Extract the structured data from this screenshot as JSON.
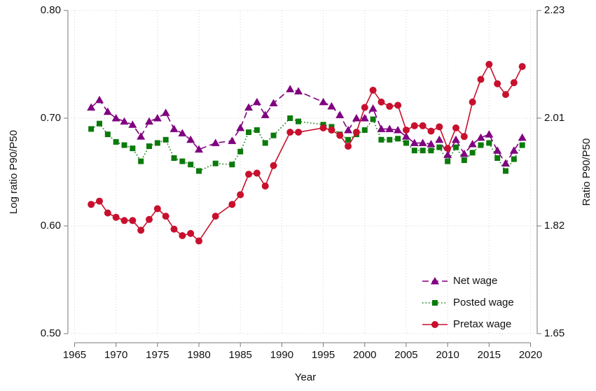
{
  "chart_data": {
    "type": "line",
    "xlabel": "Year",
    "ylabel": "Log ratio P90/P50",
    "y2label": "Ratio P90/P50",
    "x": [
      1967,
      1968,
      1969,
      1970,
      1971,
      1972,
      1973,
      1974,
      1975,
      1976,
      1977,
      1978,
      1979,
      1980,
      1982,
      1984,
      1985,
      1986,
      1987,
      1988,
      1989,
      1991,
      1992,
      1995,
      1996,
      1997,
      1998,
      1999,
      2000,
      2001,
      2002,
      2003,
      2004,
      2005,
      2006,
      2007,
      2008,
      2009,
      2010,
      2011,
      2012,
      2013,
      2014,
      2015,
      2016,
      2017,
      2018,
      2019
    ],
    "series": [
      {
        "name": "Net wage",
        "color": "#800080",
        "marker": "triangle",
        "dash": "dashed",
        "values": [
          0.71,
          0.717,
          0.706,
          0.7,
          0.697,
          0.694,
          0.683,
          0.697,
          0.7,
          0.705,
          0.69,
          0.686,
          0.68,
          0.671,
          0.677,
          0.679,
          0.691,
          0.71,
          0.715,
          0.703,
          0.714,
          0.727,
          0.725,
          0.715,
          0.711,
          0.703,
          0.689,
          0.7,
          0.7,
          0.709,
          0.69,
          0.69,
          0.689,
          0.683,
          0.677,
          0.677,
          0.676,
          0.68,
          0.666,
          0.68,
          0.667,
          0.676,
          0.682,
          0.685,
          0.67,
          0.658,
          0.67,
          0.682
        ]
      },
      {
        "name": "Posted wage",
        "color": "#0b7a0b",
        "marker": "square",
        "dash": "dotted",
        "values": [
          0.69,
          0.695,
          0.685,
          0.678,
          0.675,
          0.672,
          0.66,
          0.674,
          0.677,
          0.68,
          0.663,
          0.66,
          0.657,
          0.651,
          0.658,
          0.657,
          0.669,
          0.687,
          0.689,
          0.677,
          0.684,
          0.7,
          0.697,
          0.694,
          0.692,
          0.685,
          0.68,
          0.685,
          0.689,
          0.699,
          0.68,
          0.68,
          0.681,
          0.677,
          0.67,
          0.67,
          0.67,
          0.673,
          0.66,
          0.673,
          0.661,
          0.668,
          0.675,
          0.677,
          0.663,
          0.651,
          0.662,
          0.675
        ]
      },
      {
        "name": "Pretax wage",
        "color": "#c8102e",
        "marker": "circle",
        "dash": "solid",
        "values": [
          0.62,
          0.623,
          0.612,
          0.608,
          0.605,
          0.605,
          0.596,
          0.606,
          0.616,
          0.609,
          0.597,
          0.591,
          0.593,
          0.586,
          0.609,
          0.62,
          0.629,
          0.648,
          0.649,
          0.637,
          0.656,
          0.687,
          0.687,
          0.691,
          0.689,
          0.684,
          0.674,
          0.687,
          0.71,
          0.726,
          0.715,
          0.711,
          0.712,
          0.689,
          0.693,
          0.693,
          0.688,
          0.692,
          0.672,
          0.691,
          0.683,
          0.715,
          0.736,
          0.75,
          0.732,
          0.722,
          0.733,
          0.748
        ]
      }
    ],
    "xlim": [
      1964.2,
      2020.8
    ],
    "xticks": [
      1965,
      1970,
      1975,
      1980,
      1985,
      1990,
      1995,
      2000,
      2005,
      2010,
      2015,
      2020
    ],
    "ylim": [
      0.5,
      0.8
    ],
    "yticks": [
      {
        "value": 0.5,
        "label": "0.50"
      },
      {
        "value": 0.6,
        "label": "0.60"
      },
      {
        "value": 0.7,
        "label": "0.70"
      },
      {
        "value": 0.8,
        "label": "0.80"
      }
    ],
    "y2scale": "log",
    "y2lim": [
      1.6487,
      2.2255
    ],
    "y2ticks": [
      {
        "value": 1.6487,
        "label": "1.65"
      },
      {
        "value": 1.8221,
        "label": "1.82"
      },
      {
        "value": 2.0138,
        "label": "2.01"
      },
      {
        "value": 2.2255,
        "label": "2.23"
      }
    ],
    "grid": true,
    "legend": "lower right"
  }
}
